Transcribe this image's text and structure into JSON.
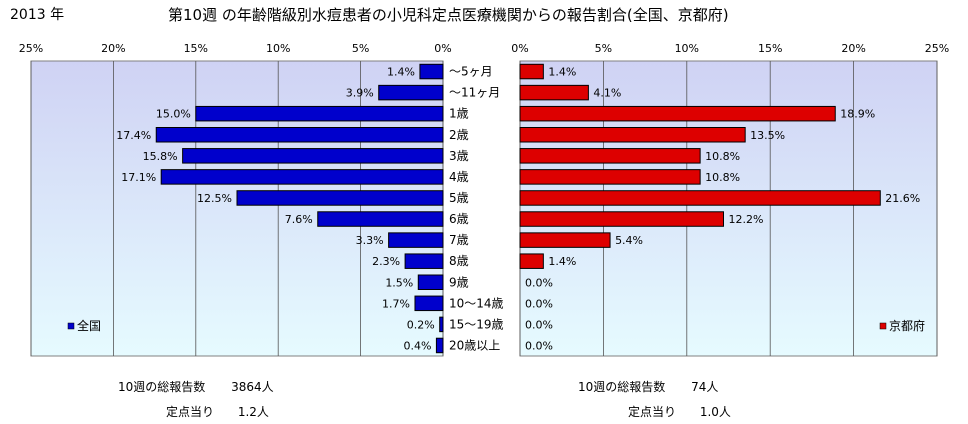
{
  "header": {
    "year": "2013 年",
    "title": "第10週 の年齢階級別水痘患者の小児科定点医療機関からの報告割合(全国、京都府)"
  },
  "chart_data": [
    {
      "type": "bar",
      "orientation": "horizontal",
      "direction": "right-to-left",
      "series": [
        {
          "name": "全国",
          "color": "#0000cc",
          "values": [
            1.4,
            3.9,
            15.0,
            17.4,
            15.8,
            17.1,
            12.5,
            7.6,
            3.3,
            2.3,
            1.5,
            1.7,
            0.2,
            0.4
          ]
        }
      ],
      "value_labels": [
        "1.4%",
        "3.9%",
        "15.0%",
        "17.4%",
        "15.8%",
        "17.1%",
        "12.5%",
        "7.6%",
        "3.3%",
        "2.3%",
        "1.5%",
        "1.7%",
        "0.2%",
        "0.4%"
      ],
      "xlim": [
        0,
        25
      ],
      "tick_labels": [
        "25%",
        "20%",
        "15%",
        "10%",
        "5%",
        "0%"
      ],
      "legend": "bottom-left",
      "grid": true
    },
    {
      "type": "bar",
      "orientation": "horizontal",
      "direction": "left-to-right",
      "series": [
        {
          "name": "京都府",
          "color": "#dd0000",
          "values": [
            1.4,
            4.1,
            18.9,
            13.5,
            10.8,
            10.8,
            21.6,
            12.2,
            5.4,
            1.4,
            0.0,
            0.0,
            0.0,
            0.0
          ]
        }
      ],
      "value_labels": [
        "1.4%",
        "4.1%",
        "18.9%",
        "13.5%",
        "10.8%",
        "10.8%",
        "21.6%",
        "12.2%",
        "5.4%",
        "1.4%",
        "0.0%",
        "0.0%",
        "0.0%",
        "0.0%"
      ],
      "xlim": [
        0,
        25
      ],
      "tick_labels": [
        "0%",
        "5%",
        "10%",
        "15%",
        "20%",
        "25%"
      ],
      "legend": "bottom-right",
      "grid": true
    }
  ],
  "categories": [
    "～5ヶ月",
    "～11ヶ月",
    "1歳",
    "2歳",
    "3歳",
    "4歳",
    "5歳",
    "6歳",
    "7歳",
    "8歳",
    "9歳",
    "10～14歳",
    "15～19歳",
    "20歳以上"
  ],
  "footer": {
    "left": {
      "total_label": "10週の総報告数",
      "total_value": "3864人",
      "per_label": "定点当り",
      "per_value": "1.2人"
    },
    "right": {
      "total_label": "10週の総報告数",
      "total_value": "74人",
      "per_label": "定点当り",
      "per_value": "1.0人"
    }
  }
}
